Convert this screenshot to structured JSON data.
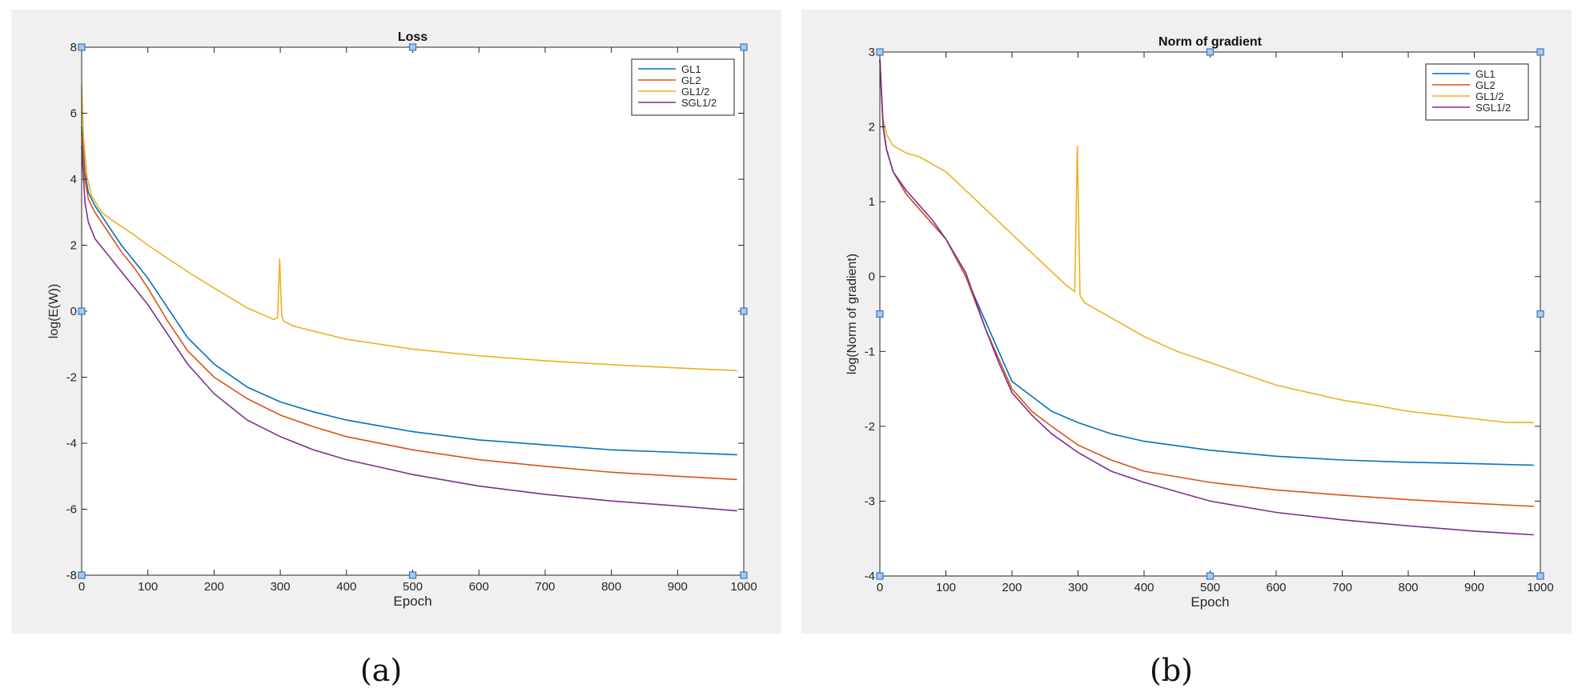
{
  "captions": {
    "a": "(a)",
    "b": "(b)"
  },
  "chart_data": [
    {
      "type": "line",
      "title": "Loss",
      "xlabel": "Epoch",
      "ylabel": "log(E(W))",
      "xlim": [
        0,
        1000
      ],
      "ylim": [
        -8,
        8
      ],
      "xticks": [
        0,
        100,
        200,
        300,
        400,
        500,
        600,
        700,
        800,
        900,
        1000
      ],
      "yticks": [
        -8,
        -6,
        -4,
        -2,
        0,
        2,
        4,
        6,
        8
      ],
      "grid": false,
      "legend": "top-right",
      "series": [
        {
          "name": "GL1",
          "color": "#0072bd",
          "x": [
            0,
            5,
            10,
            20,
            40,
            60,
            80,
            100,
            130,
            160,
            200,
            250,
            300,
            350,
            400,
            500,
            600,
            700,
            800,
            900,
            990
          ],
          "y": [
            5.6,
            4.2,
            3.6,
            3.2,
            2.6,
            2.0,
            1.5,
            1.0,
            0.1,
            -0.8,
            -1.6,
            -2.3,
            -2.75,
            -3.05,
            -3.3,
            -3.65,
            -3.9,
            -4.05,
            -4.2,
            -4.28,
            -4.35
          ]
        },
        {
          "name": "GL2",
          "color": "#d95319",
          "x": [
            0,
            5,
            10,
            20,
            40,
            60,
            80,
            100,
            130,
            160,
            200,
            250,
            300,
            350,
            400,
            500,
            600,
            700,
            800,
            900,
            990
          ],
          "y": [
            5.4,
            4.0,
            3.4,
            3.0,
            2.4,
            1.8,
            1.3,
            0.7,
            -0.3,
            -1.2,
            -2.0,
            -2.65,
            -3.15,
            -3.5,
            -3.8,
            -4.2,
            -4.5,
            -4.7,
            -4.88,
            -5.0,
            -5.1
          ]
        },
        {
          "name": "GL1/2",
          "color": "#edb120",
          "x": [
            0,
            3,
            8,
            15,
            30,
            50,
            80,
            100,
            130,
            160,
            200,
            250,
            290,
            296,
            299,
            302,
            305,
            320,
            350,
            400,
            500,
            600,
            700,
            800,
            900,
            990
          ],
          "y": [
            6.8,
            5.2,
            4.1,
            3.5,
            3.0,
            2.7,
            2.3,
            2.0,
            1.6,
            1.2,
            0.7,
            0.1,
            -0.25,
            -0.2,
            1.6,
            -0.1,
            -0.3,
            -0.45,
            -0.6,
            -0.85,
            -1.15,
            -1.35,
            -1.5,
            -1.62,
            -1.72,
            -1.8
          ]
        },
        {
          "name": "SGL1/2",
          "color": "#7e2f8e",
          "x": [
            0,
            5,
            10,
            20,
            40,
            60,
            80,
            100,
            130,
            160,
            200,
            250,
            300,
            350,
            400,
            500,
            600,
            700,
            800,
            900,
            990
          ],
          "y": [
            5.0,
            3.3,
            2.7,
            2.2,
            1.7,
            1.2,
            0.7,
            0.2,
            -0.7,
            -1.6,
            -2.5,
            -3.3,
            -3.8,
            -4.2,
            -4.5,
            -4.95,
            -5.3,
            -5.55,
            -5.75,
            -5.9,
            -6.05
          ]
        }
      ]
    },
    {
      "type": "line",
      "title": "Norm of gradient",
      "xlabel": "Epoch",
      "ylabel": "log(Norm of gradient)",
      "xlim": [
        0,
        1000
      ],
      "ylim": [
        -4,
        3
      ],
      "xticks": [
        0,
        100,
        200,
        300,
        400,
        500,
        600,
        700,
        800,
        900,
        1000
      ],
      "yticks": [
        -4,
        -3,
        -2,
        -1,
        0,
        1,
        2,
        3
      ],
      "grid": false,
      "legend": "top-right",
      "series": [
        {
          "name": "GL1",
          "color": "#0072bd",
          "x": [
            0,
            5,
            10,
            20,
            40,
            60,
            80,
            100,
            130,
            160,
            180,
            200,
            230,
            260,
            300,
            350,
            400,
            500,
            600,
            700,
            800,
            900,
            990
          ],
          "y": [
            2.9,
            2.0,
            1.7,
            1.4,
            1.1,
            0.9,
            0.7,
            0.5,
            0.0,
            -0.6,
            -1.0,
            -1.4,
            -1.6,
            -1.8,
            -1.95,
            -2.1,
            -2.2,
            -2.32,
            -2.4,
            -2.45,
            -2.48,
            -2.5,
            -2.52
          ]
        },
        {
          "name": "GL2",
          "color": "#d95319",
          "x": [
            0,
            5,
            10,
            20,
            40,
            60,
            80,
            100,
            130,
            160,
            180,
            200,
            230,
            260,
            300,
            350,
            400,
            500,
            600,
            700,
            800,
            900,
            990
          ],
          "y": [
            2.9,
            2.0,
            1.7,
            1.4,
            1.1,
            0.9,
            0.7,
            0.5,
            0.0,
            -0.7,
            -1.1,
            -1.5,
            -1.8,
            -2.0,
            -2.25,
            -2.45,
            -2.6,
            -2.75,
            -2.85,
            -2.92,
            -2.98,
            -3.03,
            -3.07
          ]
        },
        {
          "name": "GL1/2",
          "color": "#edb120",
          "x": [
            0,
            5,
            10,
            20,
            40,
            60,
            80,
            100,
            130,
            160,
            190,
            220,
            250,
            280,
            295,
            299,
            303,
            310,
            350,
            400,
            450,
            500,
            550,
            600,
            650,
            700,
            750,
            800,
            850,
            900,
            950,
            990
          ],
          "y": [
            2.9,
            2.1,
            1.9,
            1.75,
            1.65,
            1.6,
            1.5,
            1.4,
            1.15,
            0.9,
            0.65,
            0.4,
            0.15,
            -0.1,
            -0.2,
            1.75,
            -0.25,
            -0.35,
            -0.55,
            -0.8,
            -1.0,
            -1.15,
            -1.3,
            -1.45,
            -1.55,
            -1.65,
            -1.72,
            -1.8,
            -1.85,
            -1.9,
            -1.95,
            -1.95
          ]
        },
        {
          "name": "SGL1/2",
          "color": "#7e2f8e",
          "x": [
            0,
            5,
            10,
            20,
            40,
            60,
            80,
            100,
            130,
            160,
            180,
            200,
            230,
            260,
            300,
            350,
            400,
            500,
            600,
            700,
            800,
            900,
            990
          ],
          "y": [
            2.9,
            2.0,
            1.7,
            1.4,
            1.15,
            0.95,
            0.75,
            0.5,
            0.05,
            -0.7,
            -1.15,
            -1.55,
            -1.85,
            -2.1,
            -2.35,
            -2.6,
            -2.75,
            -3.0,
            -3.15,
            -3.25,
            -3.33,
            -3.4,
            -3.45
          ]
        }
      ]
    }
  ]
}
